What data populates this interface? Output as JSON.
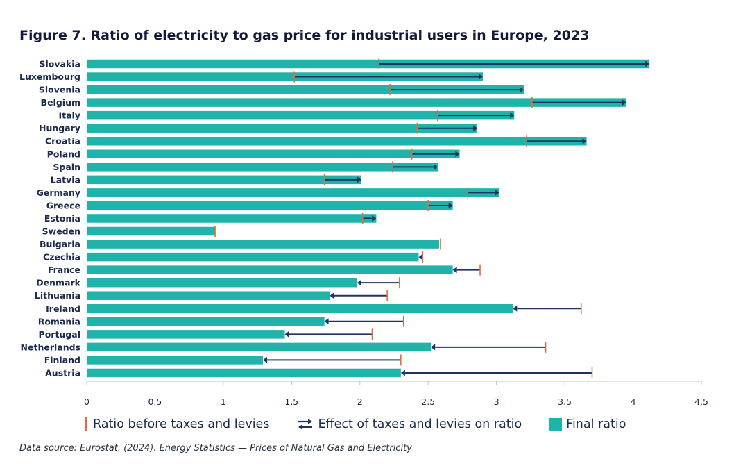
{
  "title": "Figure 7. Ratio of electricity to gas price for industrial users in Europe, 2023",
  "source": "Data source: Eurostat. (2024). Energy Statistics — Prices of Natural Gas and Electricity",
  "colors": {
    "bar": "#1fb3aa",
    "marker": "#e36b3f",
    "arrow": "#1d3461",
    "text": "#1b2a4e"
  },
  "legend": {
    "before": "Ratio before taxes and levies",
    "effect": "Effect of taxes and levies on ratio",
    "final": "Final ratio"
  },
  "chart_data": {
    "type": "bar",
    "orientation": "horizontal",
    "xlim": [
      0,
      4.5
    ],
    "x_ticks": [
      "0",
      "0.5",
      "1",
      "1.5",
      "2",
      "2.5",
      "3",
      "3.5",
      "4",
      "4.5"
    ],
    "grid": false,
    "legend_position": "bottom",
    "categories": [
      "Slovakia",
      "Luxembourg",
      "Slovenia",
      "Belgium",
      "Italy",
      "Hungary",
      "Croatia",
      "Poland",
      "Spain",
      "Latvia",
      "Germany",
      "Greece",
      "Estonia",
      "Sweden",
      "Bulgaria",
      "Czechia",
      "France",
      "Denmark",
      "Lithuania",
      "Ireland",
      "Romania",
      "Portugal",
      "Netherlands",
      "Finland",
      "Austria"
    ],
    "series": [
      {
        "name": "Final ratio",
        "values": [
          4.12,
          2.9,
          3.2,
          3.95,
          3.13,
          2.86,
          3.66,
          2.73,
          2.57,
          2.01,
          3.02,
          2.68,
          2.12,
          0.94,
          2.58,
          2.43,
          2.68,
          1.98,
          1.78,
          3.12,
          1.74,
          1.45,
          2.52,
          1.29,
          2.3
        ]
      },
      {
        "name": "Ratio before taxes and levies",
        "values": [
          2.14,
          1.52,
          2.22,
          3.26,
          2.57,
          2.42,
          3.22,
          2.38,
          2.24,
          1.74,
          2.79,
          2.5,
          2.02,
          0.94,
          2.59,
          2.46,
          2.88,
          2.29,
          2.2,
          3.62,
          2.32,
          2.09,
          3.36,
          2.3,
          3.7
        ]
      }
    ]
  }
}
